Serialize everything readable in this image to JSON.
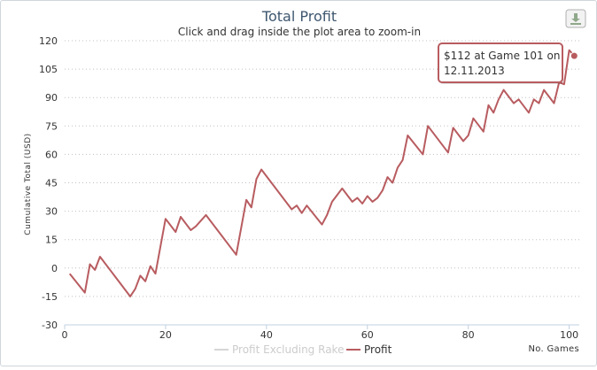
{
  "chart_data": {
    "type": "line",
    "title": "Total Profit",
    "subtitle": "Click and drag inside the plot area to zoom-in",
    "xlabel": "No. Games",
    "ylabel": "Cumulative Total (USD)",
    "xlim": [
      0,
      102
    ],
    "ylim": [
      -30,
      120
    ],
    "xticks": [
      0,
      20,
      40,
      60,
      80,
      100
    ],
    "yticks": [
      -30,
      -15,
      0,
      15,
      30,
      45,
      60,
      75,
      90,
      105,
      120
    ],
    "grid": true,
    "legend_position": "bottom-center",
    "series": [
      {
        "name": "Profit Excluding Rake",
        "color": "#d6d6d6",
        "values": []
      },
      {
        "name": "Profit",
        "color": "#b85c60",
        "points": [
          [
            1,
            -3
          ],
          [
            4,
            -13
          ],
          [
            5,
            2
          ],
          [
            6,
            -1
          ],
          [
            7,
            6
          ],
          [
            13,
            -15
          ],
          [
            14,
            -11
          ],
          [
            15,
            -4
          ],
          [
            16,
            -7
          ],
          [
            17,
            1
          ],
          [
            18,
            -3
          ],
          [
            20,
            26
          ],
          [
            22,
            19
          ],
          [
            23,
            27
          ],
          [
            25,
            20
          ],
          [
            26,
            22
          ],
          [
            28,
            28
          ],
          [
            34,
            7
          ],
          [
            36,
            36
          ],
          [
            37,
            32
          ],
          [
            38,
            47
          ],
          [
            39,
            52
          ],
          [
            45,
            31
          ],
          [
            46,
            33
          ],
          [
            47,
            29
          ],
          [
            48,
            33
          ],
          [
            51,
            23
          ],
          [
            52,
            28
          ],
          [
            53,
            35
          ],
          [
            55,
            42
          ],
          [
            57,
            35
          ],
          [
            58,
            37
          ],
          [
            59,
            34
          ],
          [
            60,
            38
          ],
          [
            61,
            35
          ],
          [
            62,
            37
          ],
          [
            63,
            41
          ],
          [
            64,
            48
          ],
          [
            65,
            45
          ],
          [
            66,
            53
          ],
          [
            67,
            57
          ],
          [
            68,
            70
          ],
          [
            71,
            60
          ],
          [
            72,
            75
          ],
          [
            76,
            61
          ],
          [
            77,
            74
          ],
          [
            79,
            67
          ],
          [
            80,
            70
          ],
          [
            81,
            79
          ],
          [
            83,
            72
          ],
          [
            84,
            86
          ],
          [
            85,
            82
          ],
          [
            86,
            89
          ],
          [
            87,
            94
          ],
          [
            89,
            87
          ],
          [
            90,
            89
          ],
          [
            92,
            82
          ],
          [
            93,
            89
          ],
          [
            94,
            87
          ],
          [
            95,
            94
          ],
          [
            97,
            87
          ],
          [
            98,
            98
          ],
          [
            99,
            97
          ],
          [
            100,
            115
          ],
          [
            101,
            112
          ]
        ]
      }
    ],
    "tooltip": {
      "line1": "$112 at Game 101 on",
      "line2": "12.11.2013"
    },
    "highlight_point": [
      101,
      112
    ]
  },
  "ui": {
    "export_button_label": "download-icon"
  }
}
